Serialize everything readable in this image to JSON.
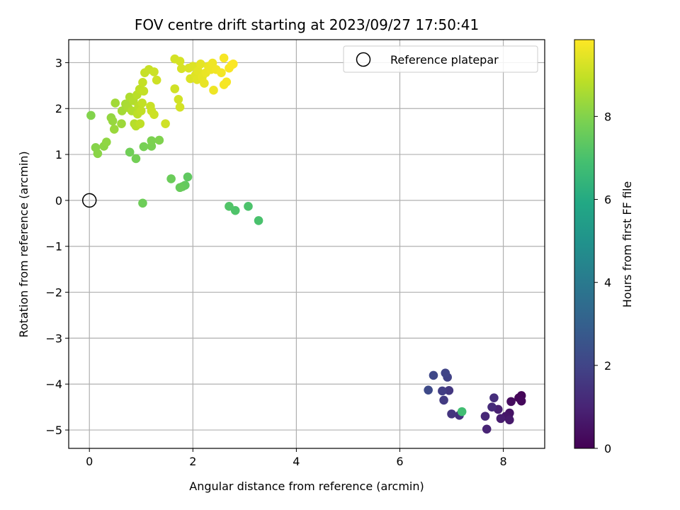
{
  "chart_data": {
    "type": "scatter",
    "title": "FOV centre drift starting at 2023/09/27 17:50:41",
    "xlabel": "Angular distance from reference (arcmin)",
    "ylabel": "Rotation from reference (arcmin)",
    "xlim": [
      -0.4,
      8.8
    ],
    "ylim": [
      -5.4,
      3.5
    ],
    "xticks": [
      0,
      2,
      4,
      6,
      8
    ],
    "xtick_labels": [
      "0",
      "2",
      "4",
      "6",
      "8"
    ],
    "yticks": [
      -5,
      -4,
      -3,
      -2,
      -1,
      0,
      1,
      2,
      3
    ],
    "ytick_labels": [
      "−5",
      "−4",
      "−3",
      "−2",
      "−1",
      "0",
      "1",
      "2",
      "3"
    ],
    "grid": true,
    "legend": {
      "position": "top-right",
      "entries": [
        "Reference platepar"
      ]
    },
    "reference_point": {
      "x": 0,
      "y": 0,
      "label": "Reference platepar"
    },
    "colorbar": {
      "label": "Hours from first FF file",
      "min": 0,
      "max": 9.85,
      "colormap": "viridis",
      "ticks": [
        0,
        2,
        4,
        6,
        8
      ],
      "tick_labels": [
        "0",
        "2",
        "4",
        "6",
        "8"
      ]
    },
    "series": [
      {
        "points": [
          {
            "x": 8.35,
            "y": -4.25,
            "c": 0.1
          },
          {
            "x": 8.3,
            "y": -4.3,
            "c": 0.15
          },
          {
            "x": 8.35,
            "y": -4.37,
            "c": 0.2
          },
          {
            "x": 8.15,
            "y": -4.38,
            "c": 0.3
          },
          {
            "x": 8.1,
            "y": -4.7,
            "c": 0.4
          },
          {
            "x": 8.12,
            "y": -4.63,
            "c": 0.5
          },
          {
            "x": 8.05,
            "y": -4.7,
            "c": 0.6
          },
          {
            "x": 8.12,
            "y": -4.78,
            "c": 0.7
          },
          {
            "x": 7.95,
            "y": -4.75,
            "c": 0.8
          },
          {
            "x": 7.9,
            "y": -4.55,
            "c": 0.9
          },
          {
            "x": 7.68,
            "y": -4.98,
            "c": 1.0
          },
          {
            "x": 7.65,
            "y": -4.7,
            "c": 1.1
          },
          {
            "x": 7.78,
            "y": -4.5,
            "c": 1.2
          },
          {
            "x": 7.82,
            "y": -4.3,
            "c": 1.3
          },
          {
            "x": 7.15,
            "y": -4.68,
            "c": 1.4
          },
          {
            "x": 7.0,
            "y": -4.65,
            "c": 1.5
          },
          {
            "x": 6.95,
            "y": -4.14,
            "c": 1.6
          },
          {
            "x": 6.85,
            "y": -4.35,
            "c": 1.7
          },
          {
            "x": 6.82,
            "y": -4.15,
            "c": 1.8
          },
          {
            "x": 6.92,
            "y": -3.85,
            "c": 1.9
          },
          {
            "x": 6.88,
            "y": -3.76,
            "c": 2.0
          },
          {
            "x": 6.65,
            "y": -3.81,
            "c": 2.1
          },
          {
            "x": 6.55,
            "y": -4.13,
            "c": 2.2
          },
          {
            "x": 7.2,
            "y": -4.6,
            "c": 6.8
          },
          {
            "x": 3.27,
            "y": -0.44,
            "c": 7.0
          },
          {
            "x": 3.07,
            "y": -0.13,
            "c": 7.05
          },
          {
            "x": 2.82,
            "y": -0.22,
            "c": 7.1
          },
          {
            "x": 2.7,
            "y": -0.13,
            "c": 7.15
          },
          {
            "x": 1.9,
            "y": 0.51,
            "c": 7.4
          },
          {
            "x": 1.85,
            "y": 0.33,
            "c": 7.45
          },
          {
            "x": 1.8,
            "y": 0.3,
            "c": 7.5
          },
          {
            "x": 1.75,
            "y": 0.28,
            "c": 7.55
          },
          {
            "x": 1.58,
            "y": 0.47,
            "c": 7.6
          },
          {
            "x": 1.03,
            "y": -0.06,
            "c": 7.65
          },
          {
            "x": 0.78,
            "y": 1.05,
            "c": 7.7
          },
          {
            "x": 0.9,
            "y": 0.91,
            "c": 7.75
          },
          {
            "x": 1.05,
            "y": 1.17,
            "c": 7.8
          },
          {
            "x": 1.2,
            "y": 1.18,
            "c": 7.85
          },
          {
            "x": 1.2,
            "y": 1.3,
            "c": 7.9
          },
          {
            "x": 1.35,
            "y": 1.31,
            "c": 7.95
          },
          {
            "x": 0.03,
            "y": 1.85,
            "c": 8.0
          },
          {
            "x": 0.12,
            "y": 1.15,
            "c": 8.05
          },
          {
            "x": 0.16,
            "y": 1.02,
            "c": 8.1
          },
          {
            "x": 0.28,
            "y": 1.18,
            "c": 8.15
          },
          {
            "x": 0.33,
            "y": 1.27,
            "c": 8.2
          },
          {
            "x": 0.42,
            "y": 1.8,
            "c": 8.25
          },
          {
            "x": 0.45,
            "y": 1.73,
            "c": 8.3
          },
          {
            "x": 0.48,
            "y": 1.55,
            "c": 8.35
          },
          {
            "x": 0.62,
            "y": 1.67,
            "c": 8.4
          },
          {
            "x": 0.5,
            "y": 2.12,
            "c": 8.45
          },
          {
            "x": 0.63,
            "y": 1.95,
            "c": 8.5
          },
          {
            "x": 0.7,
            "y": 2.1,
            "c": 8.55
          },
          {
            "x": 0.75,
            "y": 2.02,
            "c": 8.6
          },
          {
            "x": 0.78,
            "y": 2.25,
            "c": 8.65
          },
          {
            "x": 0.82,
            "y": 1.95,
            "c": 8.7
          },
          {
            "x": 0.85,
            "y": 2.17,
            "c": 8.72
          },
          {
            "x": 0.87,
            "y": 1.67,
            "c": 8.75
          },
          {
            "x": 0.9,
            "y": 1.62,
            "c": 8.78
          },
          {
            "x": 0.92,
            "y": 2.3,
            "c": 8.8
          },
          {
            "x": 0.95,
            "y": 2.05,
            "c": 8.82
          },
          {
            "x": 0.93,
            "y": 1.88,
            "c": 8.85
          },
          {
            "x": 0.97,
            "y": 2.42,
            "c": 8.88
          },
          {
            "x": 0.98,
            "y": 1.67,
            "c": 8.9
          },
          {
            "x": 1.0,
            "y": 1.95,
            "c": 8.92
          },
          {
            "x": 1.02,
            "y": 2.12,
            "c": 8.94
          },
          {
            "x": 1.05,
            "y": 2.38,
            "c": 8.96
          },
          {
            "x": 1.03,
            "y": 2.57,
            "c": 8.98
          },
          {
            "x": 1.07,
            "y": 2.78,
            "c": 9.0
          },
          {
            "x": 1.15,
            "y": 2.85,
            "c": 9.02
          },
          {
            "x": 1.18,
            "y": 2.05,
            "c": 9.04
          },
          {
            "x": 1.2,
            "y": 1.95,
            "c": 9.06
          },
          {
            "x": 1.25,
            "y": 2.8,
            "c": 9.08
          },
          {
            "x": 1.25,
            "y": 1.87,
            "c": 9.1
          },
          {
            "x": 1.3,
            "y": 2.62,
            "c": 9.12
          },
          {
            "x": 1.47,
            "y": 1.67,
            "c": 9.14
          },
          {
            "x": 1.65,
            "y": 2.43,
            "c": 9.16
          },
          {
            "x": 1.72,
            "y": 2.2,
            "c": 9.18
          },
          {
            "x": 1.75,
            "y": 2.03,
            "c": 9.2
          },
          {
            "x": 1.65,
            "y": 3.08,
            "c": 9.22
          },
          {
            "x": 1.75,
            "y": 3.03,
            "c": 9.24
          },
          {
            "x": 1.78,
            "y": 2.87,
            "c": 9.26
          },
          {
            "x": 1.92,
            "y": 2.88,
            "c": 9.3
          },
          {
            "x": 1.95,
            "y": 2.65,
            "c": 9.33
          },
          {
            "x": 2.0,
            "y": 2.92,
            "c": 9.36
          },
          {
            "x": 2.05,
            "y": 2.73,
            "c": 9.39
          },
          {
            "x": 2.08,
            "y": 2.63,
            "c": 9.42
          },
          {
            "x": 2.1,
            "y": 2.82,
            "c": 9.45
          },
          {
            "x": 2.15,
            "y": 2.97,
            "c": 9.48
          },
          {
            "x": 2.18,
            "y": 2.68,
            "c": 9.5
          },
          {
            "x": 2.22,
            "y": 2.55,
            "c": 9.52
          },
          {
            "x": 2.25,
            "y": 2.78,
            "c": 9.55
          },
          {
            "x": 2.3,
            "y": 2.92,
            "c": 9.57
          },
          {
            "x": 2.35,
            "y": 2.85,
            "c": 9.6
          },
          {
            "x": 2.4,
            "y": 2.4,
            "c": 9.62
          },
          {
            "x": 2.38,
            "y": 2.99,
            "c": 9.64
          },
          {
            "x": 2.45,
            "y": 2.85,
            "c": 9.66
          },
          {
            "x": 2.55,
            "y": 2.78,
            "c": 9.7
          },
          {
            "x": 2.6,
            "y": 2.52,
            "c": 9.72
          },
          {
            "x": 2.65,
            "y": 2.58,
            "c": 9.74
          },
          {
            "x": 2.6,
            "y": 3.1,
            "c": 9.76
          },
          {
            "x": 2.7,
            "y": 2.88,
            "c": 9.78
          },
          {
            "x": 2.75,
            "y": 2.95,
            "c": 9.8
          },
          {
            "x": 2.78,
            "y": 2.97,
            "c": 9.82
          }
        ]
      }
    ]
  }
}
